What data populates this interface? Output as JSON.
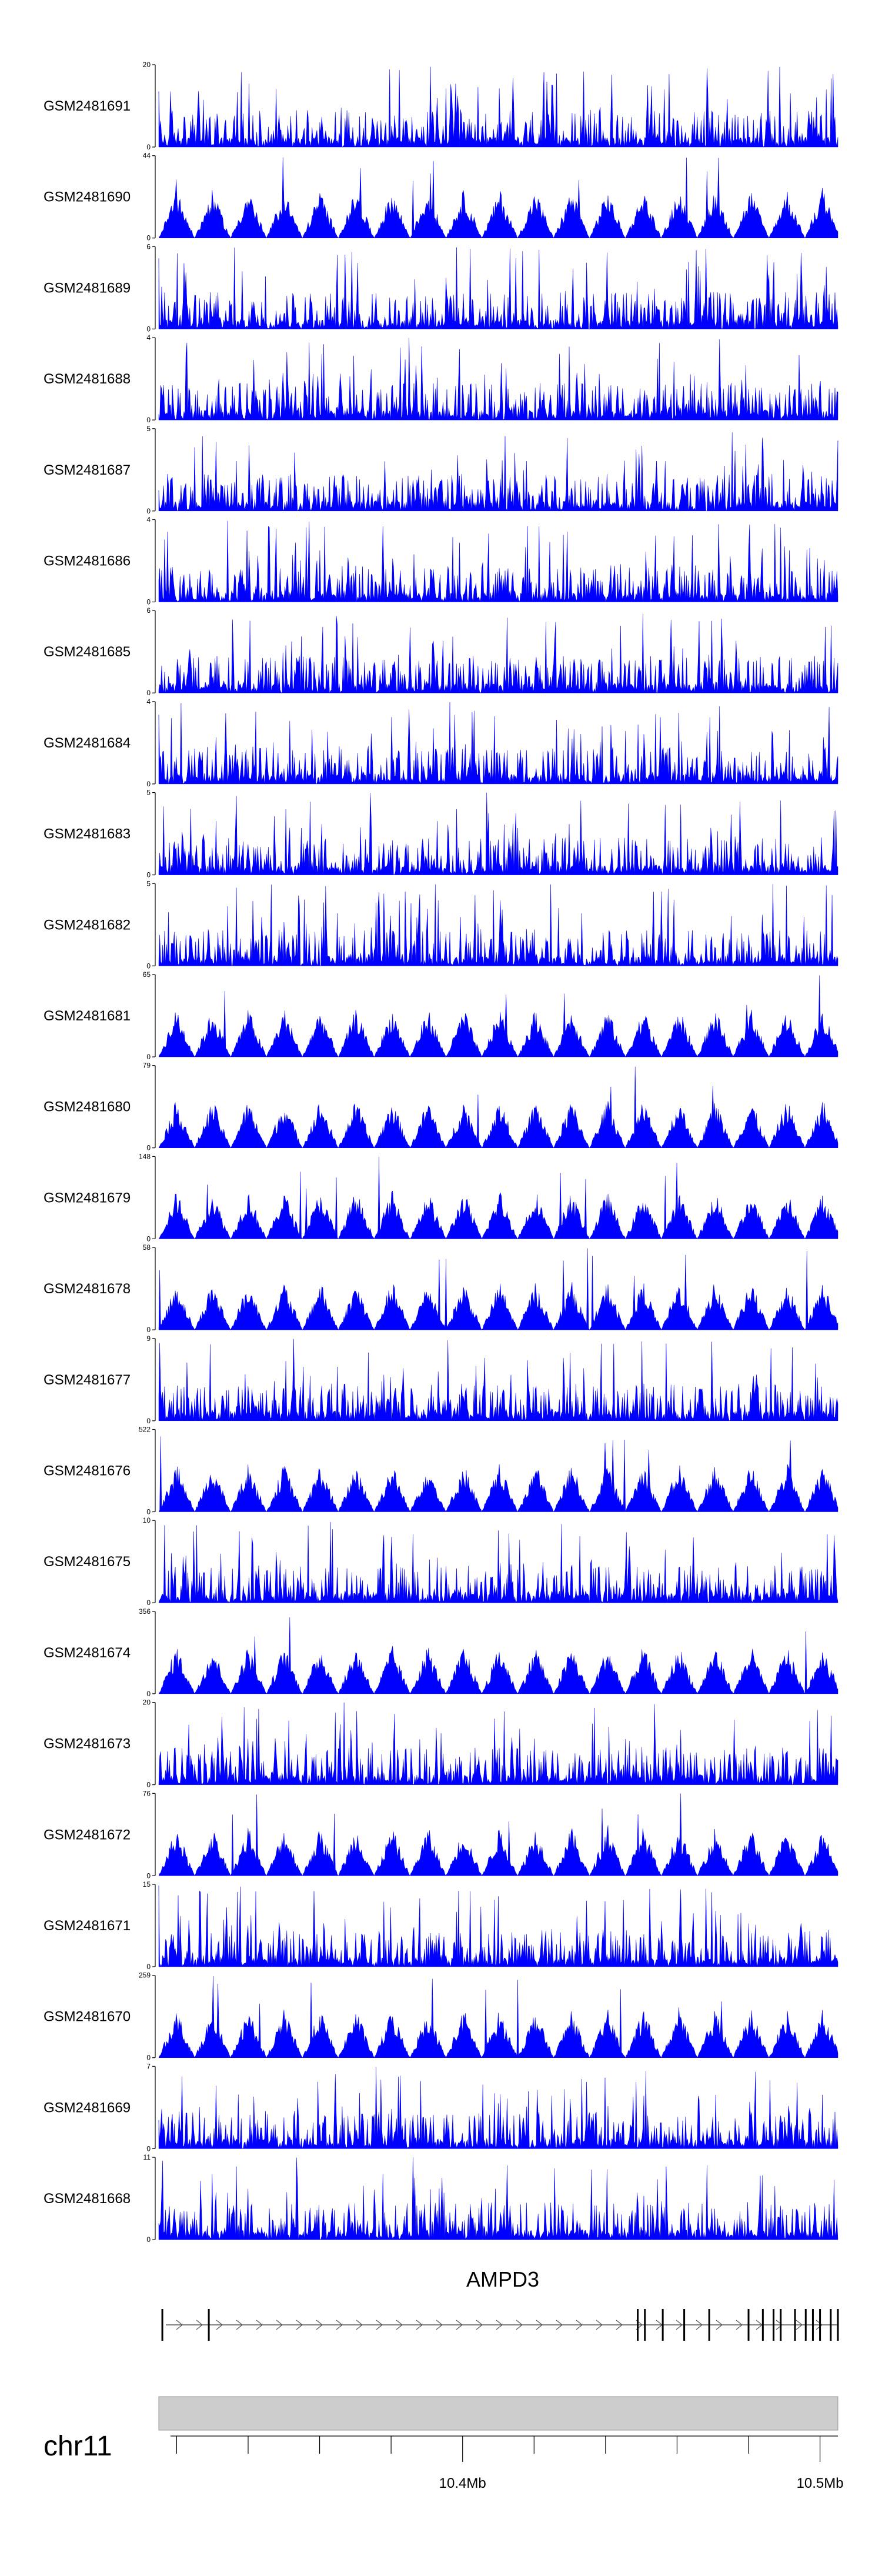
{
  "chart_data": {
    "type": "area",
    "title": "",
    "xlabel": "",
    "region": {
      "chromosome": "chr11",
      "start_mb": 10.315,
      "end_mb": 10.505
    },
    "track_color": "#0000ff",
    "tracks": [
      {
        "name": "GSM2481691",
        "ymax": 20
      },
      {
        "name": "GSM2481690",
        "ymax": 44
      },
      {
        "name": "GSM2481689",
        "ymax": 6
      },
      {
        "name": "GSM2481688",
        "ymax": 4
      },
      {
        "name": "GSM2481687",
        "ymax": 5
      },
      {
        "name": "GSM2481686",
        "ymax": 4
      },
      {
        "name": "GSM2481685",
        "ymax": 6
      },
      {
        "name": "GSM2481684",
        "ymax": 4
      },
      {
        "name": "GSM2481683",
        "ymax": 5
      },
      {
        "name": "GSM2481682",
        "ymax": 5
      },
      {
        "name": "GSM2481681",
        "ymax": 65
      },
      {
        "name": "GSM2481680",
        "ymax": 79
      },
      {
        "name": "GSM2481679",
        "ymax": 148
      },
      {
        "name": "GSM2481678",
        "ymax": 58
      },
      {
        "name": "GSM2481677",
        "ymax": 9
      },
      {
        "name": "GSM2481676",
        "ymax": 522
      },
      {
        "name": "GSM2481675",
        "ymax": 10
      },
      {
        "name": "GSM2481674",
        "ymax": 356
      },
      {
        "name": "GSM2481673",
        "ymax": 20
      },
      {
        "name": "GSM2481672",
        "ymax": 76
      },
      {
        "name": "GSM2481671",
        "ymax": 15
      },
      {
        "name": "GSM2481670",
        "ymax": 259
      },
      {
        "name": "GSM2481669",
        "ymax": 7
      },
      {
        "name": "GSM2481668",
        "ymax": 11
      }
    ],
    "gene": {
      "name": "AMPD3",
      "exons_mb": [
        10.316,
        10.329,
        10.449,
        10.451,
        10.456,
        10.462,
        10.469,
        10.48,
        10.484,
        10.487,
        10.489,
        10.493,
        10.496,
        10.498,
        10.5,
        10.503,
        10.505
      ]
    },
    "axis": {
      "ticks_mb": [
        10.32,
        10.34,
        10.36,
        10.38,
        10.4,
        10.42,
        10.44,
        10.46,
        10.48,
        10.5
      ],
      "labels": [
        {
          "mb": 10.4,
          "text": "10.4Mb"
        },
        {
          "mb": 10.5,
          "text": "10.5Mb"
        }
      ]
    }
  }
}
